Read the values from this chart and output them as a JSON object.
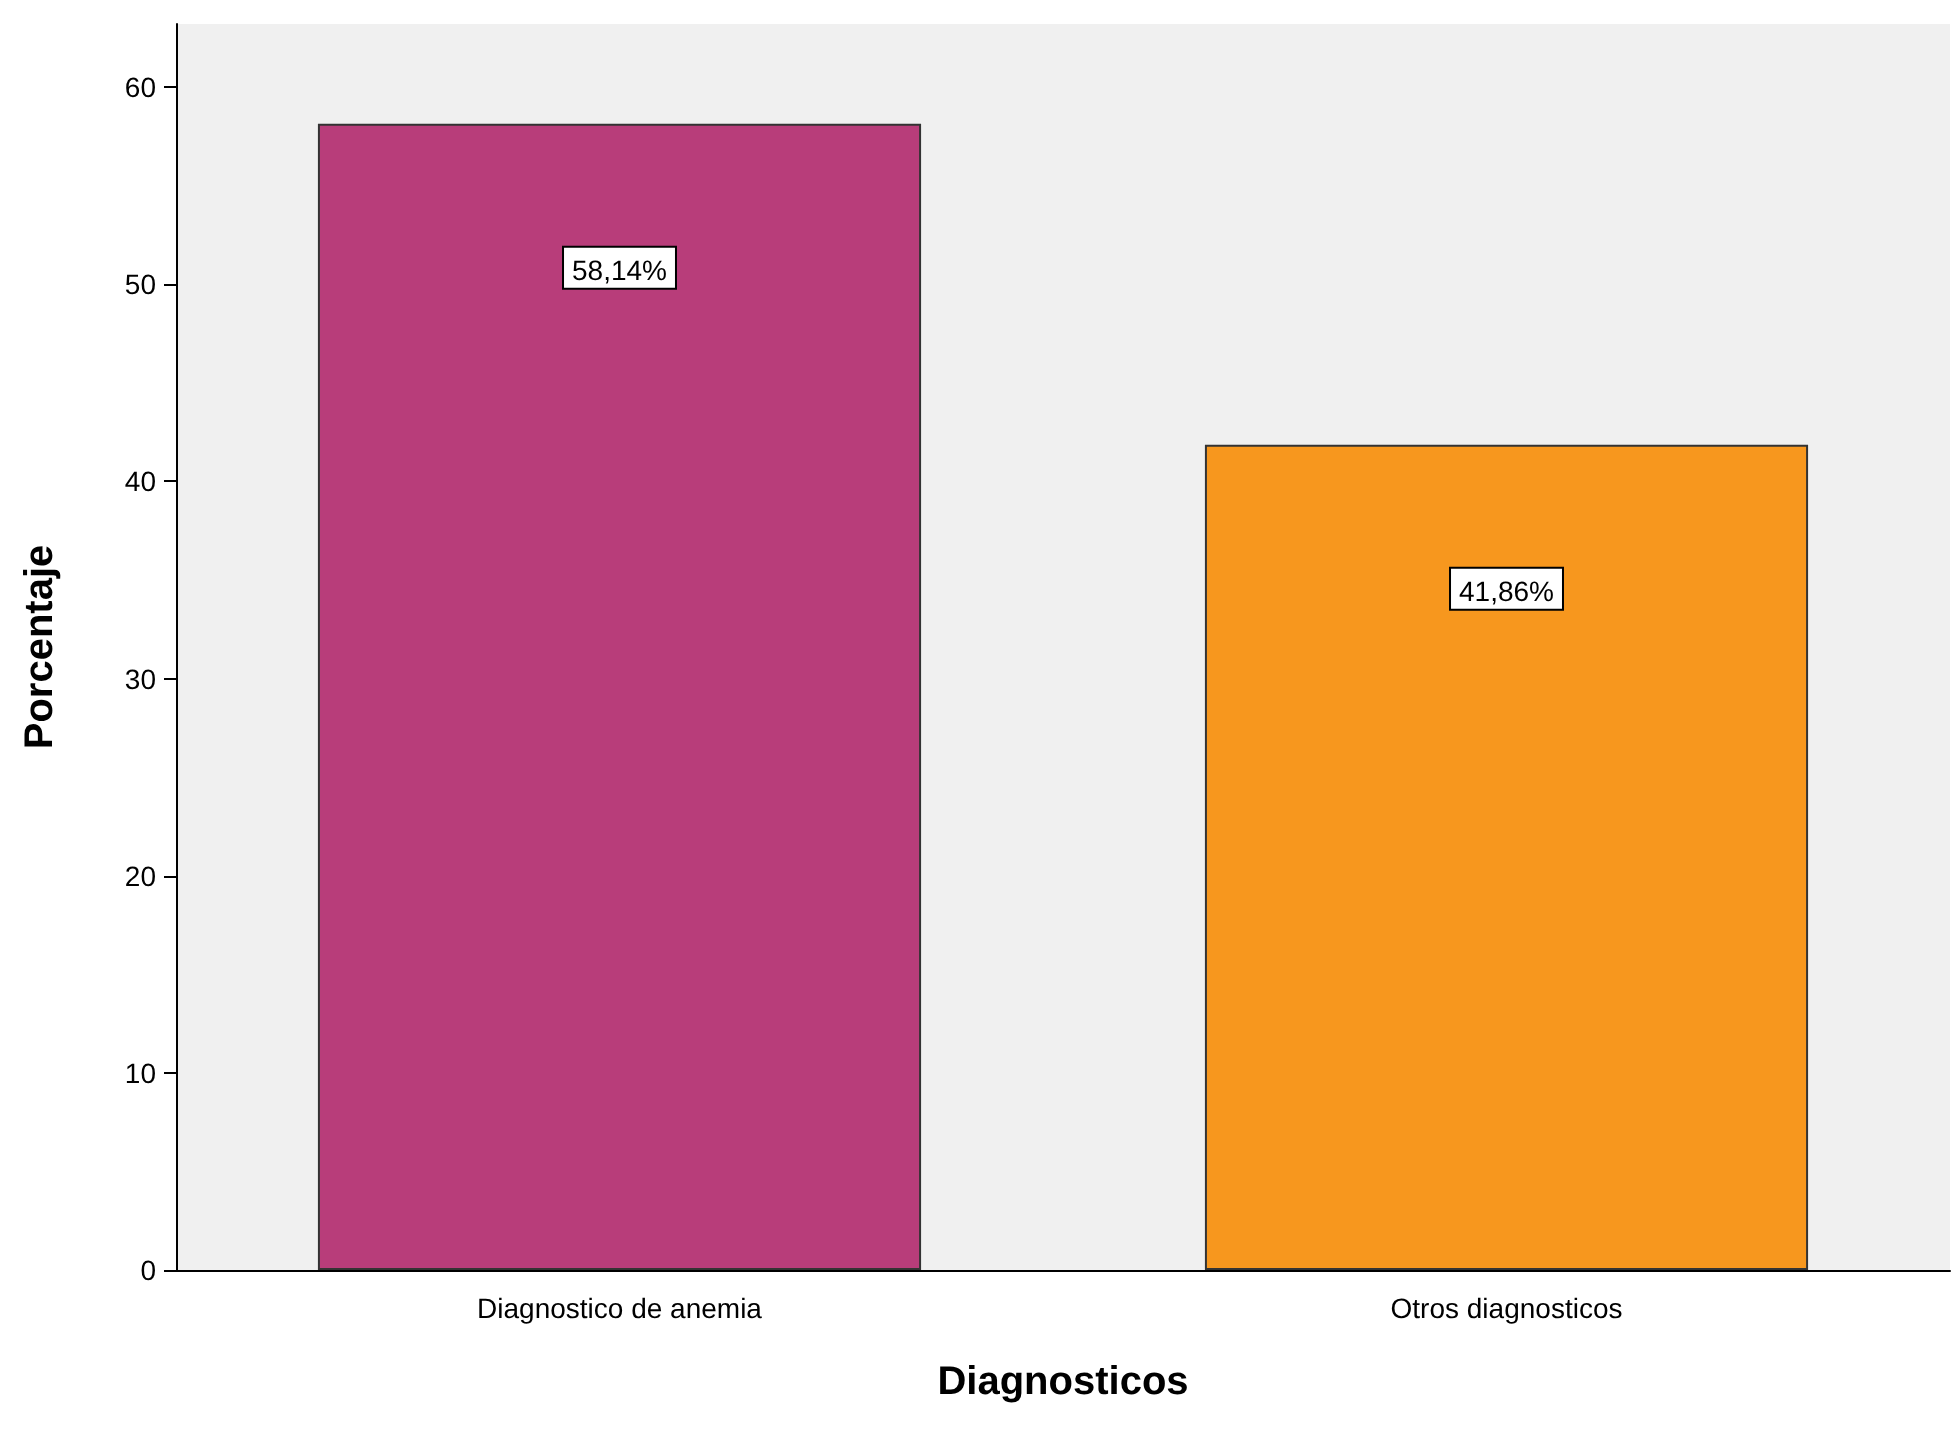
{
  "chart_data": {
    "type": "bar",
    "xlabel": "Diagnosticos",
    "ylabel": "Porcentaje",
    "categories": [
      "Diagnostico de anemia",
      "Otros diagnosticos"
    ],
    "values": [
      58.14,
      41.86
    ],
    "colors": [
      "#b83d7a",
      "#f7971e"
    ],
    "value_labels": [
      "58,14%",
      "41,86%"
    ],
    "ylim": [
      0,
      63.2
    ],
    "yticks": [
      0,
      10,
      20,
      30,
      40,
      50,
      60
    ]
  }
}
